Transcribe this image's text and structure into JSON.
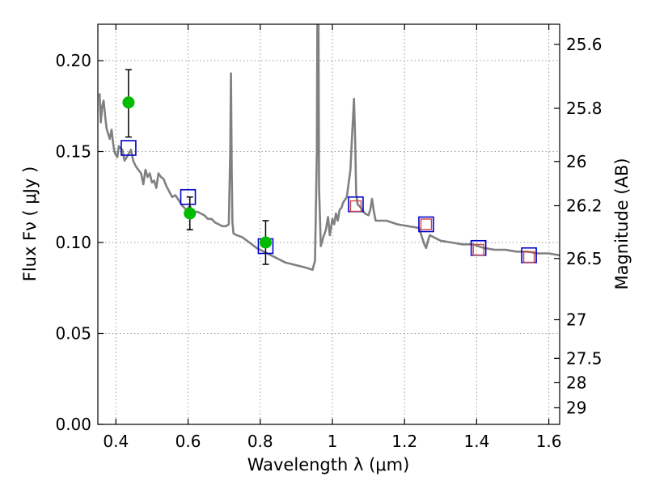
{
  "chart_data": {
    "type": "scatter",
    "xlabel": "Wavelength  λ (μm)",
    "ylabel": "Flux  Fν  ( μJy )",
    "y2label": "Magnitude (AB)",
    "xlim": [
      0.35,
      1.63
    ],
    "ylim": [
      0.0,
      0.22
    ],
    "grid": true,
    "x_ticks": [
      0.4,
      0.6,
      0.8,
      1.0,
      1.2,
      1.4,
      1.6
    ],
    "x_tick_labels": [
      "0.4",
      "0.6",
      "0.8",
      "1",
      "1.2",
      "1.4",
      "1.6"
    ],
    "y_ticks": [
      0.0,
      0.05,
      0.1,
      0.15,
      0.2
    ],
    "y_tick_labels": [
      "0.00",
      "0.05",
      "0.10",
      "0.15",
      "0.20"
    ],
    "y2_tick_labels": [
      "25.6",
      "25.8",
      "26",
      "26.2",
      "26.5",
      "27",
      "27.5",
      "28",
      "29"
    ],
    "y2_tick_mags": [
      25.6,
      25.8,
      26.0,
      26.2,
      26.5,
      27.0,
      27.5,
      28.0,
      29.0
    ],
    "colors": {
      "template": "#808080",
      "observed": "#00bb00",
      "model_blue": "#0000cc",
      "model_red": "#cc4444",
      "errorbar": "#000000",
      "grid": "#999999"
    },
    "series": [
      {
        "kind": "template_spectrum",
        "x": [
          0.355,
          0.358,
          0.362,
          0.366,
          0.37,
          0.374,
          0.378,
          0.383,
          0.388,
          0.392,
          0.396,
          0.4,
          0.404,
          0.408,
          0.412,
          0.418,
          0.424,
          0.43,
          0.436,
          0.442,
          0.448,
          0.455,
          0.462,
          0.47,
          0.476,
          0.482,
          0.488,
          0.494,
          0.5,
          0.506,
          0.512,
          0.518,
          0.525,
          0.532,
          0.54,
          0.548,
          0.556,
          0.565,
          0.575,
          0.585,
          0.595,
          0.605,
          0.615,
          0.625,
          0.635,
          0.645,
          0.655,
          0.665,
          0.675,
          0.685,
          0.695,
          0.705,
          0.713,
          0.717,
          0.719,
          0.721,
          0.723,
          0.726,
          0.735,
          0.75,
          0.77,
          0.79,
          0.81,
          0.83,
          0.85,
          0.87,
          0.89,
          0.91,
          0.93,
          0.945,
          0.952,
          0.957,
          0.9585,
          0.96,
          0.9615,
          0.963,
          0.968,
          0.975,
          0.982,
          0.988,
          0.993,
          1.0,
          1.005,
          1.01,
          1.015,
          1.02,
          1.025,
          1.03,
          1.04,
          1.05,
          1.055,
          1.06,
          1.063,
          1.066,
          1.07,
          1.08,
          1.09,
          1.1,
          1.105,
          1.11,
          1.115,
          1.12,
          1.13,
          1.15,
          1.18,
          1.21,
          1.24,
          1.255,
          1.26,
          1.265,
          1.27,
          1.28,
          1.3,
          1.33,
          1.36,
          1.39,
          1.42,
          1.45,
          1.48,
          1.51,
          1.54,
          1.57,
          1.6,
          1.63
        ],
        "y": [
          0.182,
          0.166,
          0.175,
          0.178,
          0.17,
          0.163,
          0.16,
          0.157,
          0.162,
          0.155,
          0.15,
          0.148,
          0.147,
          0.153,
          0.152,
          0.151,
          0.145,
          0.147,
          0.149,
          0.151,
          0.145,
          0.142,
          0.14,
          0.138,
          0.132,
          0.14,
          0.136,
          0.138,
          0.133,
          0.134,
          0.13,
          0.138,
          0.136,
          0.135,
          0.131,
          0.128,
          0.125,
          0.126,
          0.123,
          0.12,
          0.118,
          0.12,
          0.116,
          0.117,
          0.116,
          0.115,
          0.113,
          0.113,
          0.111,
          0.11,
          0.109,
          0.109,
          0.11,
          0.15,
          0.193,
          0.14,
          0.111,
          0.105,
          0.104,
          0.103,
          0.1,
          0.097,
          0.095,
          0.093,
          0.091,
          0.089,
          0.088,
          0.087,
          0.086,
          0.085,
          0.09,
          0.15,
          0.22,
          0.22,
          0.22,
          0.13,
          0.098,
          0.103,
          0.107,
          0.114,
          0.104,
          0.113,
          0.11,
          0.116,
          0.112,
          0.118,
          0.119,
          0.122,
          0.125,
          0.14,
          0.16,
          0.179,
          0.158,
          0.127,
          0.121,
          0.119,
          0.116,
          0.115,
          0.118,
          0.124,
          0.117,
          0.112,
          0.112,
          0.112,
          0.11,
          0.109,
          0.108,
          0.099,
          0.097,
          0.101,
          0.104,
          0.103,
          0.101,
          0.1,
          0.099,
          0.099,
          0.097,
          0.096,
          0.096,
          0.095,
          0.095,
          0.094,
          0.094,
          0.093
        ]
      },
      {
        "kind": "observed_points",
        "x": [
          0.435,
          0.605,
          0.815
        ],
        "y": [
          0.177,
          0.116,
          0.1
        ],
        "yerr_low": [
          0.019,
          0.009,
          0.012
        ],
        "yerr_high": [
          0.018,
          0.009,
          0.012
        ]
      },
      {
        "kind": "model_squares_blue",
        "x": [
          0.435,
          0.6,
          0.815,
          1.065,
          1.26,
          1.405,
          1.545
        ],
        "y": [
          0.152,
          0.125,
          0.098,
          0.121,
          0.11,
          0.097,
          0.093
        ]
      },
      {
        "kind": "model_squares_red",
        "x": [
          1.065,
          1.26,
          1.405,
          1.545
        ],
        "y": [
          0.12,
          0.11,
          0.096,
          0.092
        ]
      }
    ]
  }
}
